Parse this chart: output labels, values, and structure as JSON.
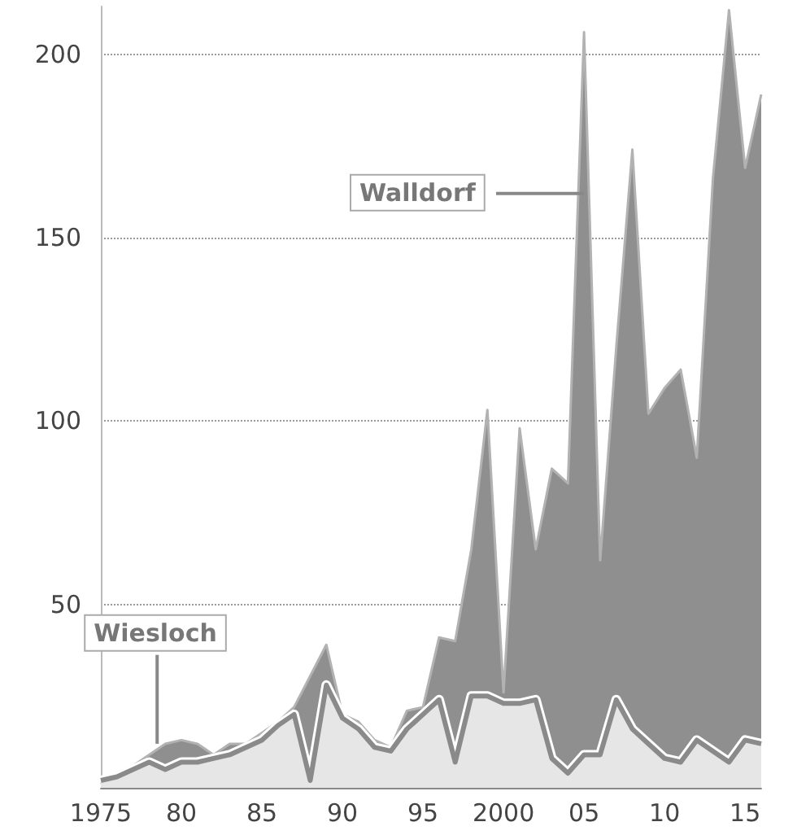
{
  "chart_data": {
    "type": "area",
    "x": [
      1975,
      1976,
      1977,
      1978,
      1979,
      1980,
      1981,
      1982,
      1983,
      1984,
      1985,
      1986,
      1987,
      1988,
      1989,
      1990,
      1991,
      1992,
      1993,
      1994,
      1995,
      1996,
      1997,
      1998,
      1999,
      2000,
      2001,
      2002,
      2003,
      2004,
      2005,
      2006,
      2007,
      2008,
      2009,
      2010,
      2011,
      2012,
      2013,
      2014,
      2015,
      2016
    ],
    "series": [
      {
        "name": "Walldorf",
        "color": "#8f8f8f",
        "values": [
          1,
          4,
          6,
          9,
          12,
          13,
          12,
          9,
          12,
          12,
          15,
          18,
          22,
          null,
          39,
          20,
          18,
          13,
          11,
          21,
          22,
          41,
          40,
          65,
          103,
          26,
          98,
          65,
          87,
          83,
          206,
          62,
          120,
          174,
          102,
          109,
          114,
          90,
          166,
          212,
          169,
          189
        ]
      },
      {
        "name": "Wiesloch",
        "color": "#e6e6e6",
        "values": [
          2,
          3,
          5,
          7,
          5,
          7,
          7,
          8,
          9,
          11,
          13,
          17,
          20,
          2,
          28,
          19,
          16,
          11,
          10,
          16,
          20,
          24,
          7,
          25,
          25,
          23,
          23,
          24,
          8,
          4,
          9,
          9,
          24,
          16,
          12,
          8,
          7,
          13,
          10,
          7,
          13,
          12
        ]
      }
    ],
    "xlim": [
      1975,
      2016
    ],
    "xticks": [
      1975,
      {
        "value": 1980,
        "label": "80"
      },
      {
        "value": 1985,
        "label": "85"
      },
      {
        "value": 1990,
        "label": "90"
      },
      {
        "value": 1995,
        "label": "95"
      },
      2000,
      {
        "value": 2005,
        "label": "05"
      },
      {
        "value": 2010,
        "label": "10"
      },
      {
        "value": 2015,
        "label": "15"
      }
    ],
    "ylim": [
      0,
      213
    ],
    "yticks": [
      50,
      100,
      150,
      200
    ],
    "grid": "y"
  }
}
